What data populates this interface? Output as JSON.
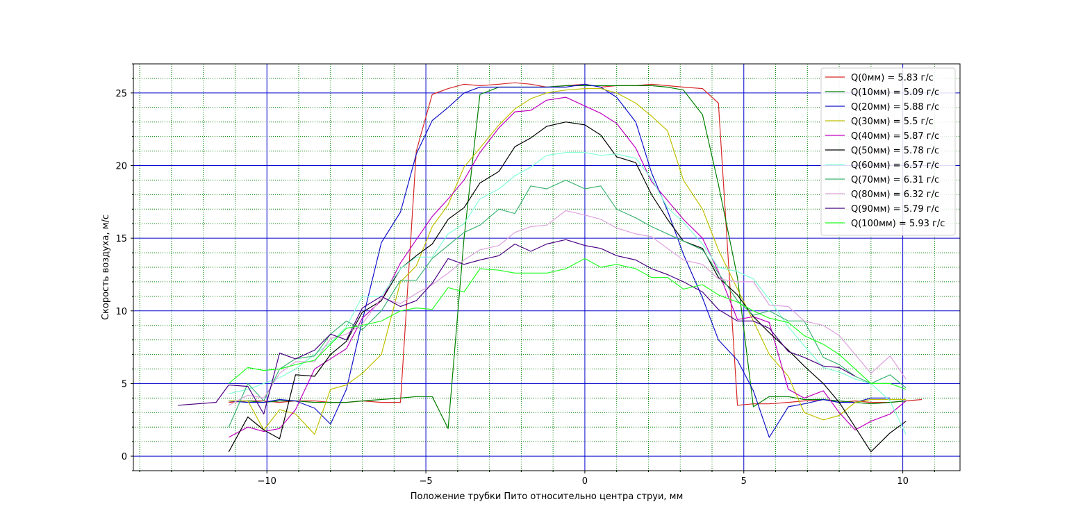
{
  "chart_data": {
    "type": "line",
    "title": "",
    "xlabel": "Положение трубки Пито относительно центра струи, мм",
    "ylabel": "Скорость воздуха, м/с",
    "xlim": [
      -14.2,
      11.8
    ],
    "ylim": [
      -1,
      27
    ],
    "xticks": [
      -10,
      -5,
      0,
      5,
      10
    ],
    "yticks": [
      0,
      5,
      10,
      15,
      20,
      25
    ],
    "xtick_labels": [
      "−10",
      "−5",
      "0",
      "5",
      "10"
    ],
    "ytick_labels": [
      "0",
      "5",
      "10",
      "15",
      "20",
      "25"
    ],
    "grid": "major blue solid, minor green dotted",
    "legend_position": "upper right",
    "series": [
      {
        "name": "Q(0мм) = 5.83 г/с",
        "color": "#d62728",
        "x": [
          -11.2,
          -10.6,
          -10.1,
          -9.6,
          -9.1,
          -8.5,
          -8.0,
          -7.5,
          -7.0,
          -6.4,
          -5.8,
          -5.3,
          -4.8,
          -4.3,
          -3.8,
          -3.3,
          -2.7,
          -2.2,
          -1.7,
          -1.2,
          -0.6,
          0.0,
          0.5,
          1.0,
          1.6,
          2.1,
          2.6,
          3.1,
          3.7,
          4.2,
          4.8,
          5.3,
          5.8,
          6.4,
          6.9,
          7.5,
          8.0,
          8.5,
          9.0,
          9.6,
          10.1,
          10.6
        ],
        "y": [
          3.7,
          3.8,
          3.8,
          3.7,
          3.8,
          3.8,
          3.7,
          3.7,
          3.8,
          3.7,
          3.7,
          21.0,
          24.9,
          25.3,
          25.6,
          25.5,
          25.6,
          25.7,
          25.6,
          25.4,
          25.5,
          25.6,
          25.4,
          25.5,
          25.5,
          25.6,
          25.5,
          25.4,
          25.3,
          24.3,
          3.5,
          3.6,
          3.6,
          3.7,
          3.8,
          3.9,
          3.7,
          3.8,
          3.7,
          3.7,
          3.8,
          3.9
        ]
      },
      {
        "name": "Q(10мм) = 5.09 г/с",
        "color": "#008000",
        "x": [
          -11.2,
          -10.6,
          -10.1,
          -9.6,
          -9.1,
          -8.5,
          -8.0,
          -7.5,
          -7.0,
          -6.4,
          -5.8,
          -5.3,
          -4.8,
          -4.3,
          -3.8,
          -3.3,
          -2.7,
          -2.2,
          -1.7,
          -1.2,
          -0.6,
          0.0,
          0.5,
          1.0,
          1.6,
          2.1,
          2.6,
          3.1,
          3.7,
          4.2,
          4.8,
          5.3,
          5.8,
          6.4,
          6.9,
          7.5,
          8.0,
          8.5,
          9.0,
          9.6,
          10.1
        ],
        "y": [
          3.8,
          3.8,
          3.7,
          3.8,
          3.8,
          3.7,
          3.7,
          3.7,
          3.8,
          3.9,
          4.0,
          4.1,
          4.1,
          1.9,
          15.0,
          24.9,
          25.4,
          25.4,
          25.4,
          25.4,
          25.5,
          25.5,
          25.5,
          25.5,
          25.5,
          25.5,
          25.4,
          25.2,
          23.5,
          18.7,
          12.3,
          3.4,
          4.1,
          4.1,
          3.9,
          3.9,
          3.8,
          3.7,
          3.6,
          3.7,
          3.8
        ]
      },
      {
        "name": "Q(20мм) = 5.88 г/с",
        "color": "#1010c8",
        "x": [
          -11.2,
          -10.6,
          -10.1,
          -9.6,
          -9.1,
          -8.5,
          -8.0,
          -7.5,
          -7.0,
          -6.4,
          -5.8,
          -5.3,
          -4.8,
          -4.3,
          -3.8,
          -3.3,
          -2.7,
          -2.2,
          -1.7,
          -1.2,
          -0.6,
          0.0,
          0.5,
          1.0,
          1.6,
          2.1,
          2.6,
          3.1,
          3.7,
          4.2,
          4.8,
          5.3,
          5.8,
          6.4,
          6.9,
          7.5,
          8.0,
          8.5,
          9.0,
          9.6
        ],
        "y": [
          3.8,
          3.7,
          3.7,
          3.9,
          3.8,
          3.3,
          2.2,
          4.6,
          9.3,
          14.7,
          16.8,
          20.8,
          23.1,
          24.0,
          25.0,
          25.4,
          25.4,
          25.4,
          25.4,
          25.4,
          25.4,
          25.6,
          25.4,
          24.7,
          23.0,
          19.5,
          16.9,
          13.9,
          10.9,
          8.0,
          6.6,
          4.5,
          1.3,
          3.4,
          3.6,
          3.9,
          3.7,
          3.7,
          4.0,
          4.0
        ]
      },
      {
        "name": "Q(30мм) = 5.5 г/с",
        "color": "#bfbf00",
        "x": [
          -11.2,
          -10.6,
          -10.1,
          -9.6,
          -9.1,
          -8.5,
          -8.0,
          -7.5,
          -7.0,
          -6.4,
          -5.8,
          -5.3,
          -4.8,
          -4.3,
          -3.8,
          -3.3,
          -2.7,
          -2.2,
          -1.7,
          -1.2,
          -0.6,
          0.0,
          0.5,
          1.0,
          1.6,
          2.1,
          2.6,
          3.1,
          3.7,
          4.2,
          4.8,
          5.3,
          5.8,
          6.4,
          6.9,
          7.5,
          8.0,
          8.5,
          9.0,
          9.6,
          10.1
        ],
        "y": [
          3.8,
          3.8,
          1.8,
          3.2,
          2.9,
          1.5,
          4.6,
          4.9,
          5.7,
          7.0,
          12.0,
          13.1,
          15.8,
          17.3,
          19.9,
          21.2,
          22.8,
          23.9,
          24.6,
          25.0,
          25.2,
          25.3,
          25.3,
          25.0,
          24.3,
          23.4,
          22.4,
          19.0,
          17.0,
          14.2,
          11.5,
          9.3,
          7.0,
          5.5,
          3.0,
          2.5,
          2.8,
          3.7,
          3.9,
          3.9,
          3.9
        ]
      },
      {
        "name": "Q(40мм) = 5.87 г/с",
        "color": "#bf00bf",
        "x": [
          -11.2,
          -10.6,
          -10.1,
          -9.6,
          -9.1,
          -8.5,
          -8.0,
          -7.5,
          -7.0,
          -6.4,
          -5.8,
          -5.3,
          -4.8,
          -4.3,
          -3.8,
          -3.3,
          -2.7,
          -2.2,
          -1.7,
          -1.2,
          -0.6,
          0.0,
          0.5,
          1.0,
          1.6,
          2.1,
          2.6,
          3.1,
          3.7,
          4.2,
          4.8,
          5.3,
          5.8,
          6.4,
          6.9,
          7.5,
          8.0,
          8.5,
          9.0,
          9.6,
          10.1
        ],
        "y": [
          1.3,
          2.0,
          1.7,
          1.9,
          3.2,
          6.0,
          6.7,
          7.4,
          9.5,
          10.7,
          13.3,
          14.9,
          16.5,
          17.7,
          19.0,
          20.9,
          22.6,
          23.7,
          23.8,
          24.5,
          24.7,
          24.1,
          23.6,
          22.9,
          21.2,
          18.9,
          17.6,
          16.3,
          15.0,
          12.7,
          9.4,
          9.6,
          9.2,
          4.6,
          4.0,
          4.5,
          3.0,
          1.8,
          2.4,
          2.9,
          3.8
        ]
      },
      {
        "name": "Q(50мм) = 5.78 г/с",
        "color": "#000000",
        "x": [
          -11.2,
          -10.6,
          -10.1,
          -9.6,
          -9.1,
          -8.5,
          -8.0,
          -7.5,
          -7.0,
          -6.4,
          -5.8,
          -5.3,
          -4.8,
          -4.3,
          -3.8,
          -3.3,
          -2.7,
          -2.2,
          -1.7,
          -1.2,
          -0.6,
          0.0,
          0.5,
          1.0,
          1.6,
          2.1,
          2.6,
          3.1,
          3.7,
          4.2,
          4.8,
          5.3,
          5.8,
          6.4,
          6.9,
          7.5,
          8.0,
          8.5,
          9.0,
          9.6,
          10.1
        ],
        "y": [
          0.3,
          2.7,
          1.8,
          1.2,
          5.6,
          5.5,
          7.0,
          7.9,
          9.9,
          10.7,
          12.9,
          13.8,
          14.6,
          16.3,
          17.1,
          18.8,
          19.6,
          21.3,
          21.9,
          22.7,
          23.0,
          22.8,
          22.1,
          20.6,
          20.2,
          18.0,
          16.3,
          14.8,
          14.3,
          12.3,
          11.1,
          9.6,
          8.5,
          7.3,
          6.2,
          5.0,
          3.7,
          2.0,
          0.3,
          1.6,
          2.4
        ]
      },
      {
        "name": "Q(60мм) = 6.57 г/с",
        "color": "#7fffd4",
        "x": [
          -11.2,
          -10.6,
          -10.1,
          -9.6,
          -9.1,
          -8.5,
          -8.0,
          -7.5,
          -7.0,
          -6.4,
          -5.8,
          -5.3,
          -4.8,
          -4.3,
          -3.8,
          -3.3,
          -2.7,
          -2.2,
          -1.7,
          -1.2,
          -0.6,
          0.0,
          0.5,
          1.0,
          1.6,
          2.1,
          2.6,
          3.1,
          3.7,
          4.2,
          4.8,
          5.3,
          5.8,
          6.4,
          6.9,
          7.5,
          8.0,
          8.5,
          9.0,
          9.6,
          10.1
        ],
        "y": [
          4.3,
          4.6,
          5.0,
          5.4,
          6.0,
          7.0,
          7.8,
          8.9,
          11.0,
          11.0,
          12.9,
          13.7,
          13.7,
          15.3,
          16.0,
          17.7,
          18.4,
          19.3,
          19.9,
          20.7,
          20.9,
          20.9,
          20.7,
          20.8,
          20.5,
          19.1,
          17.1,
          16.1,
          14.6,
          13.0,
          12.7,
          12.2,
          10.8,
          8.9,
          7.6,
          6.1,
          5.8,
          5.3,
          5.0,
          3.8,
          1.5
        ]
      },
      {
        "name": "Q(70мм) = 6.31 г/с",
        "color": "#3cb371",
        "x": [
          -11.2,
          -10.6,
          -10.1,
          -9.6,
          -9.1,
          -8.5,
          -8.0,
          -7.5,
          -7.0,
          -6.4,
          -5.8,
          -5.3,
          -4.8,
          -4.3,
          -3.8,
          -3.3,
          -2.7,
          -2.2,
          -1.7,
          -1.2,
          -0.6,
          0.0,
          0.5,
          1.0,
          1.6,
          2.1,
          2.6,
          3.1,
          3.7,
          4.2,
          4.8,
          5.3,
          5.8,
          6.4,
          6.9,
          7.5,
          8.0,
          8.5,
          9.0,
          9.6,
          10.1
        ],
        "y": [
          2.0,
          5.0,
          3.8,
          6.0,
          6.7,
          6.9,
          8.4,
          9.3,
          8.7,
          10.0,
          12.1,
          12.1,
          13.6,
          14.5,
          15.4,
          15.9,
          17.0,
          16.7,
          18.6,
          18.4,
          19.0,
          18.4,
          18.6,
          17.0,
          16.4,
          15.8,
          15.3,
          14.8,
          14.2,
          12.6,
          10.7,
          9.7,
          10.0,
          9.3,
          9.3,
          6.8,
          6.3,
          5.5,
          5.0,
          5.6,
          4.7
        ]
      },
      {
        "name": "Q(80мм) = 6.32 г/с",
        "color": "#dda0dd",
        "x": [
          -11.2,
          -10.6,
          -10.1,
          -9.6,
          -9.1,
          -8.5,
          -8.0,
          -7.5,
          -7.0,
          -6.4,
          -5.8,
          -5.3,
          -4.8,
          -4.3,
          -3.8,
          -3.3,
          -2.7,
          -2.2,
          -1.7,
          -1.2,
          -0.6,
          0.0,
          0.5,
          1.0,
          1.6,
          2.1,
          2.6,
          3.1,
          3.7,
          4.2,
          4.8,
          5.3,
          5.8,
          6.4,
          6.9,
          7.5,
          8.0,
          8.5,
          9.0,
          9.6,
          10.1
        ],
        "y": [
          3.5,
          4.2,
          4.0,
          5.7,
          6.5,
          6.5,
          8.1,
          8.4,
          9.1,
          10.9,
          10.5,
          11.2,
          11.8,
          12.6,
          13.5,
          14.2,
          14.5,
          15.4,
          15.8,
          15.9,
          16.9,
          16.6,
          16.3,
          15.7,
          15.3,
          15.1,
          14.3,
          13.5,
          13.2,
          12.2,
          12.0,
          12.0,
          10.4,
          10.3,
          9.3,
          9.0,
          8.3,
          7.0,
          5.7,
          6.9,
          5.3
        ]
      },
      {
        "name": "Q(90мм) = 5.79 г/с",
        "color": "#4b0082",
        "x": [
          -12.8,
          -11.6,
          -11.2,
          -10.6,
          -10.1,
          -9.6,
          -9.1,
          -8.5,
          -8.0,
          -7.5,
          -7.0,
          -6.4,
          -5.8,
          -5.3,
          -4.8,
          -4.3,
          -3.8,
          -3.3,
          -2.7,
          -2.2,
          -1.7,
          -1.2,
          -0.6,
          0.0,
          0.5,
          1.0,
          1.6,
          2.1,
          2.6,
          3.1,
          3.7,
          4.2,
          4.8,
          5.3,
          5.8,
          6.4,
          6.9,
          7.5,
          8.0,
          8.5
        ],
        "y": [
          3.5,
          3.7,
          4.9,
          4.8,
          2.9,
          7.1,
          6.7,
          7.3,
          8.4,
          8.0,
          10.2,
          11.0,
          10.3,
          10.7,
          11.9,
          13.6,
          13.2,
          13.5,
          13.8,
          14.6,
          14.1,
          14.6,
          14.9,
          14.5,
          14.3,
          13.8,
          13.5,
          12.9,
          12.5,
          12.0,
          11.3,
          10.1,
          9.3,
          9.3,
          8.8,
          7.2,
          6.8,
          6.2,
          6.1,
          5.5
        ]
      },
      {
        "name": "Q(100мм) = 5.93 г/с",
        "color": "#22ff22",
        "x": [
          -11.2,
          -10.6,
          -10.1,
          -9.6,
          -9.1,
          -8.5,
          -8.0,
          -7.5,
          -7.0,
          -6.4,
          -5.8,
          -5.3,
          -4.8,
          -4.3,
          -3.8,
          -3.3,
          -2.7,
          -2.2,
          -1.7,
          -1.2,
          -0.6,
          0.0,
          0.5,
          1.0,
          1.6,
          2.1,
          2.6,
          3.1,
          3.7,
          4.2,
          4.8,
          5.3,
          5.8,
          6.4,
          6.9,
          7.5,
          8.0,
          8.5,
          9.0,
          9.6,
          10.1
        ],
        "y": [
          5.0,
          6.1,
          5.9,
          6.0,
          6.3,
          6.6,
          7.7,
          8.8,
          9.0,
          9.3,
          10.0,
          10.2,
          10.1,
          11.6,
          11.3,
          12.9,
          12.8,
          12.6,
          12.6,
          12.6,
          12.9,
          13.6,
          13.0,
          13.2,
          12.9,
          12.3,
          12.3,
          11.5,
          11.8,
          11.1,
          10.6,
          10.0,
          9.5,
          9.2,
          8.3,
          7.7,
          7.0,
          6.0,
          5.0,
          5.0,
          4.6
        ]
      }
    ]
  }
}
